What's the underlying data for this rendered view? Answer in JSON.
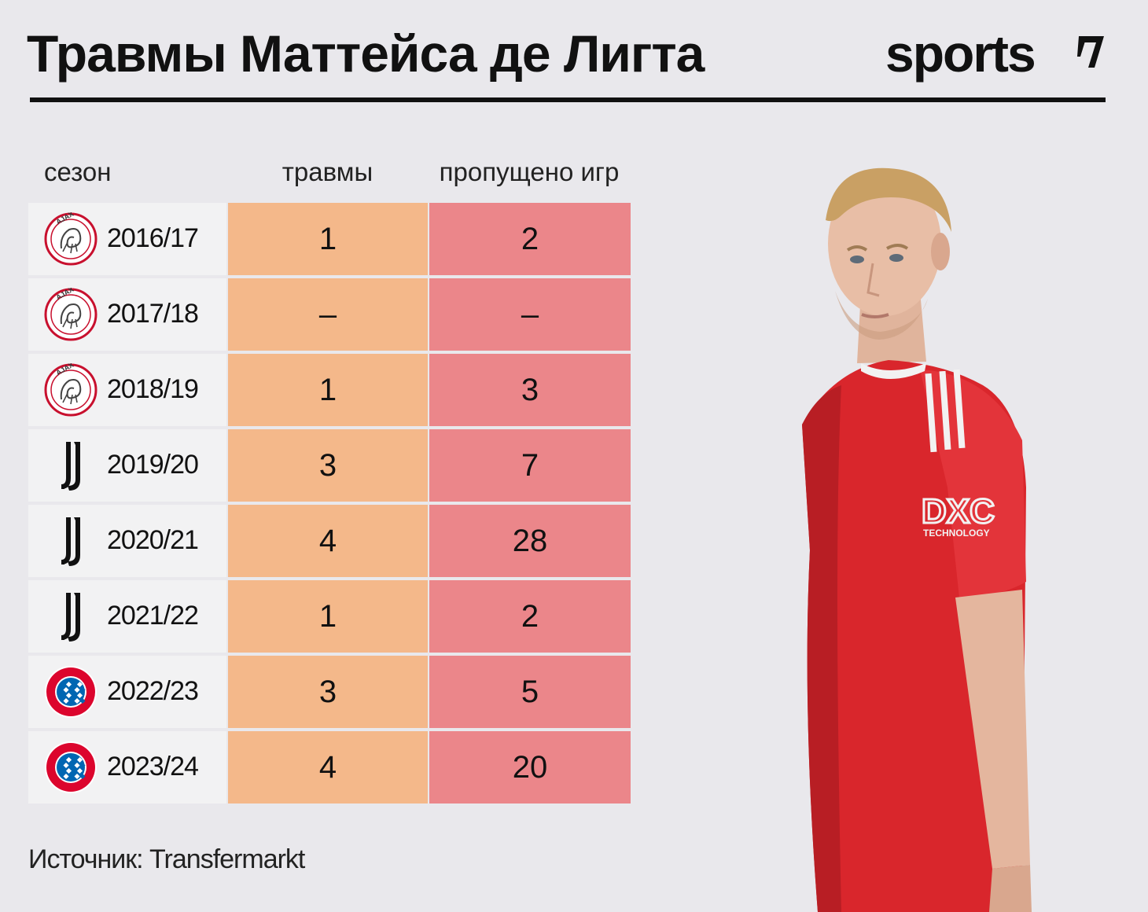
{
  "title": "Травмы Маттейса де Лигта",
  "brand": "sports",
  "headers": {
    "season": "сезон",
    "injuries": "травмы",
    "missed": "пропущено игр"
  },
  "colors": {
    "injuries_col": "#f4b88a",
    "missed_col": "#eb868a",
    "season_col": "#f2f2f3",
    "background": "#e9e8ec"
  },
  "chart_data": {
    "type": "table",
    "title": "Травмы Маттейса де Лигта",
    "columns": [
      "сезон",
      "травмы",
      "пропущено игр"
    ],
    "rows": [
      {
        "club_icon": "ajax-logo",
        "season": "2016/17",
        "injuries": "1",
        "missed": "2"
      },
      {
        "club_icon": "ajax-logo",
        "season": "2017/18",
        "injuries": "–",
        "missed": "–"
      },
      {
        "club_icon": "ajax-logo",
        "season": "2018/19",
        "injuries": "1",
        "missed": "3"
      },
      {
        "club_icon": "juventus-logo",
        "season": "2019/20",
        "injuries": "3",
        "missed": "7"
      },
      {
        "club_icon": "juventus-logo",
        "season": "2020/21",
        "injuries": "4",
        "missed": "28"
      },
      {
        "club_icon": "juventus-logo",
        "season": "2021/22",
        "injuries": "1",
        "missed": "2"
      },
      {
        "club_icon": "bayern-logo",
        "season": "2022/23",
        "injuries": "3",
        "missed": "5"
      },
      {
        "club_icon": "bayern-logo",
        "season": "2023/24",
        "injuries": "4",
        "missed": "20"
      }
    ]
  },
  "source": "Источник: Transfermarkt",
  "photo": {
    "icon": "player-photo",
    "sponsor_text": "DXC",
    "sponsor_sub": "TECHNOLOGY"
  }
}
